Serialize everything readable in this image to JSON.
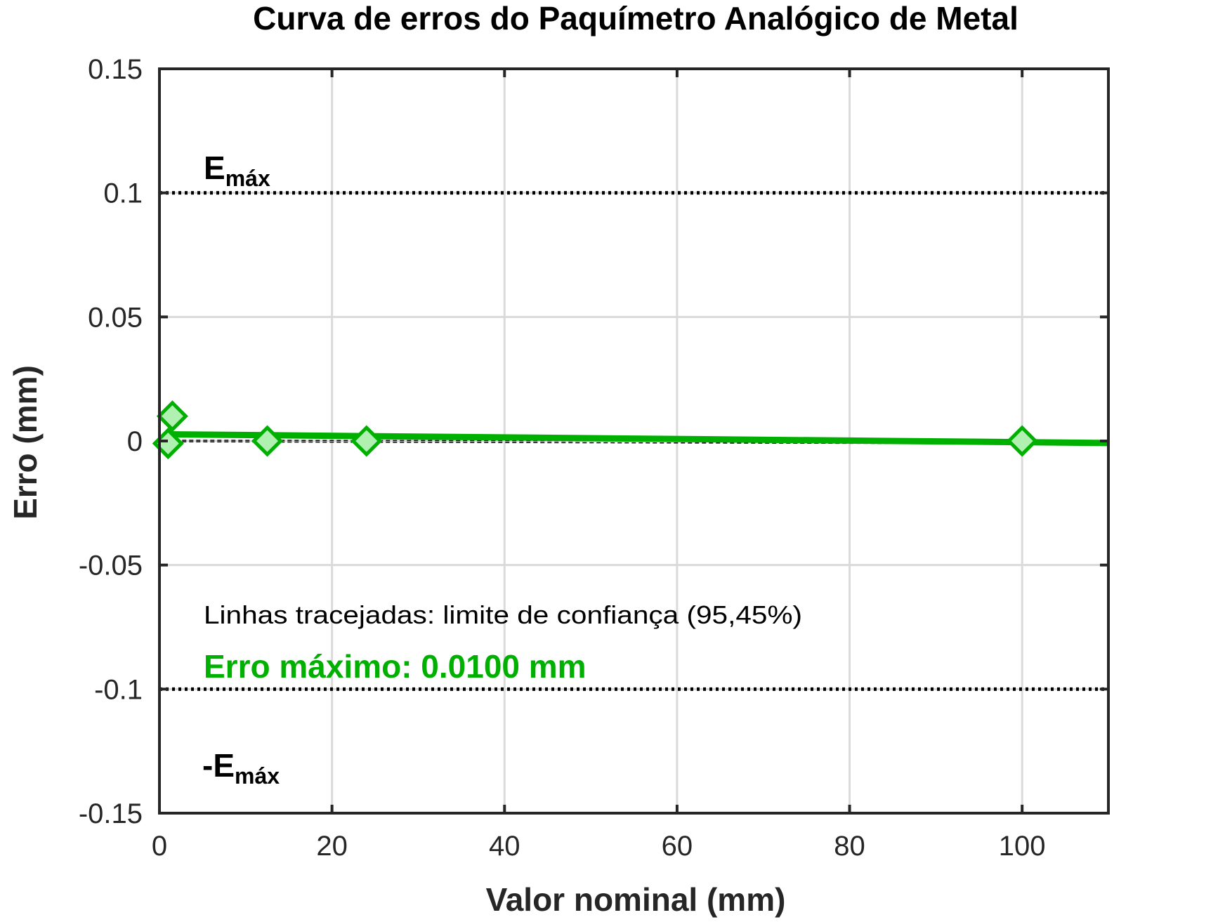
{
  "chart_data": {
    "type": "scatter",
    "title": "Curva de erros do Paquímetro Analógico de Metal",
    "xlabel": "Valor nominal (mm)",
    "ylabel": "Erro (mm)",
    "xlim": [
      0,
      110
    ],
    "ylim": [
      -0.15,
      0.15
    ],
    "x_ticks": [
      0,
      20,
      40,
      60,
      80,
      100
    ],
    "y_ticks": [
      -0.15,
      -0.1,
      -0.05,
      0,
      0.05,
      0.1,
      0.15
    ],
    "x_tick_labels": [
      "0",
      "20",
      "40",
      "60",
      "80",
      "100"
    ],
    "y_tick_labels": [
      "-0.15",
      "-0.1",
      "-0.05",
      "0",
      "0.05",
      "0.1",
      "0.15"
    ],
    "grid": true,
    "series": [
      {
        "x": [
          1.5,
          1.0,
          12.5,
          24.0,
          100.0
        ],
        "y": [
          0.01,
          -0.001,
          0.0,
          0.0,
          0.0
        ],
        "marker": "diamond",
        "color": "#00b000"
      }
    ],
    "fit_line": {
      "x": [
        1.0,
        110.0
      ],
      "y": [
        0.0027,
        -0.0008
      ],
      "color": "#00b000"
    },
    "confidence_lines": {
      "x": [
        1.0,
        110.0
      ],
      "upper": [
        0.0003,
        -0.0002
      ],
      "lower": [
        -0.0003,
        -0.0012
      ]
    },
    "limits": {
      "upper": 0.1,
      "lower": -0.1
    },
    "annotations": {
      "emax_upper": {
        "main": "E",
        "sub": "máx"
      },
      "emax_lower": {
        "main": "-E",
        "sub": "máx"
      },
      "note": "Linhas tracejadas: limite de confiança (95,45%)",
      "max_error": "Erro máximo: 0.0100 mm"
    },
    "accent_color": "#00b000"
  }
}
